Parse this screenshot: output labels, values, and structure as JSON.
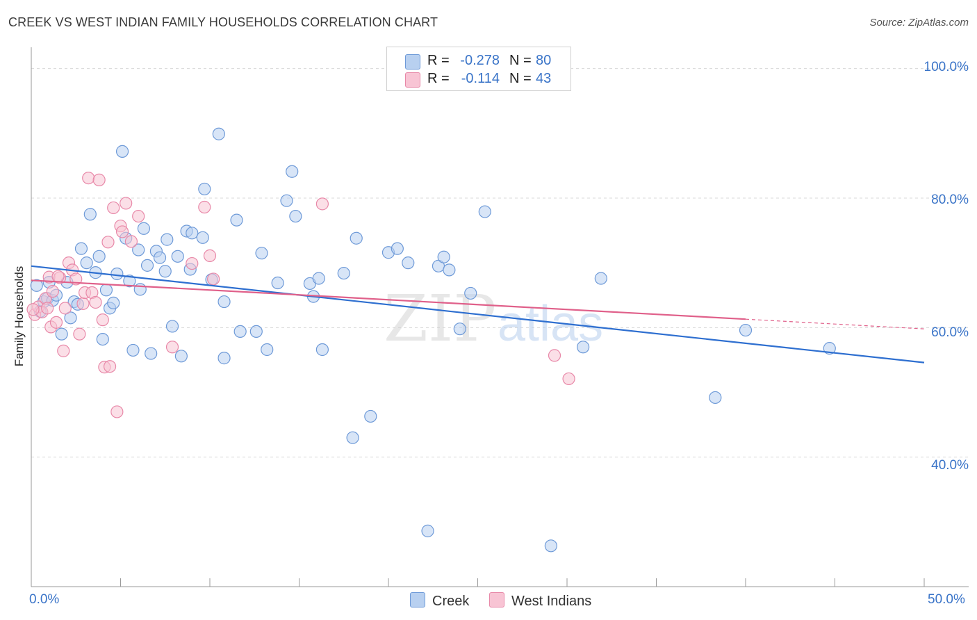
{
  "header": {
    "title": "CREEK VS WEST INDIAN FAMILY HOUSEHOLDS CORRELATION CHART",
    "source": "Source: ZipAtlas.com"
  },
  "legend": {
    "series": [
      {
        "r_label": "R =",
        "r_value": "-0.278",
        "n_label": "N =",
        "n_value": "80"
      },
      {
        "r_label": "R =",
        "r_value": "-0.114",
        "n_label": "N =",
        "n_value": "43"
      }
    ]
  },
  "bottom_legend": {
    "creek": "Creek",
    "west_indians": "West Indians"
  },
  "axis_labels": {
    "y": "Family Households",
    "y_ticks": [
      "100.0%",
      "80.0%",
      "60.0%",
      "40.0%"
    ],
    "x_min": "0.0%",
    "x_max": "50.0%"
  },
  "colors": {
    "creek_fill": "#b8d0f0",
    "creek_stroke": "#6e9ad8",
    "creek_line": "#2e6fd0",
    "wi_fill": "#f8c4d4",
    "wi_stroke": "#e888a8",
    "wi_line": "#e0608a",
    "tick_text": "#3a74c8",
    "grid": "#d8d8d8"
  },
  "watermark": {
    "zip": "ZIP",
    "atlas": "atlas"
  },
  "chart_data": {
    "type": "scatter",
    "title": "CREEK VS WEST INDIAN FAMILY HOUSEHOLDS CORRELATION CHART",
    "xlabel": "",
    "ylabel": "Family Households",
    "xlim": [
      0,
      50
    ],
    "ylim": [
      20,
      102
    ],
    "y_gridlines": [
      40,
      60,
      80,
      100
    ],
    "series": [
      {
        "name": "Creek",
        "r": -0.278,
        "n": 80,
        "trend": {
          "x0": 0,
          "y0": 69.5,
          "x1": 50,
          "y1": 54.6
        },
        "points": [
          [
            0.3,
            66.5
          ],
          [
            0.5,
            62.5
          ],
          [
            0.7,
            64.0
          ],
          [
            0.9,
            64.5
          ],
          [
            1.0,
            67.0
          ],
          [
            1.2,
            64.2
          ],
          [
            1.4,
            65.0
          ],
          [
            1.7,
            59.0
          ],
          [
            2.0,
            67.0
          ],
          [
            2.2,
            61.5
          ],
          [
            2.4,
            64.0
          ],
          [
            2.6,
            63.6
          ],
          [
            2.8,
            72.2
          ],
          [
            3.1,
            70.0
          ],
          [
            3.3,
            77.5
          ],
          [
            3.6,
            68.5
          ],
          [
            3.8,
            71.0
          ],
          [
            4.0,
            58.2
          ],
          [
            4.2,
            65.8
          ],
          [
            4.4,
            63.0
          ],
          [
            4.6,
            63.8
          ],
          [
            4.8,
            68.3
          ],
          [
            5.1,
            87.2
          ],
          [
            5.3,
            73.8
          ],
          [
            5.5,
            67.2
          ],
          [
            5.7,
            56.5
          ],
          [
            6.0,
            72.0
          ],
          [
            6.1,
            65.9
          ],
          [
            6.3,
            75.3
          ],
          [
            6.5,
            69.6
          ],
          [
            6.7,
            56.0
          ],
          [
            7.0,
            71.8
          ],
          [
            7.2,
            70.8
          ],
          [
            7.5,
            68.7
          ],
          [
            7.6,
            73.6
          ],
          [
            7.9,
            60.2
          ],
          [
            8.2,
            71.0
          ],
          [
            8.4,
            55.6
          ],
          [
            8.7,
            74.9
          ],
          [
            8.9,
            69.0
          ],
          [
            9.0,
            74.6
          ],
          [
            9.6,
            73.9
          ],
          [
            9.7,
            81.4
          ],
          [
            10.1,
            67.4
          ],
          [
            10.8,
            55.3
          ],
          [
            10.5,
            89.9
          ],
          [
            10.8,
            64.0
          ],
          [
            11.5,
            76.6
          ],
          [
            11.7,
            59.4
          ],
          [
            12.6,
            59.4
          ],
          [
            12.9,
            71.5
          ],
          [
            13.2,
            56.6
          ],
          [
            13.8,
            66.9
          ],
          [
            14.3,
            79.6
          ],
          [
            14.6,
            84.1
          ],
          [
            14.8,
            77.2
          ],
          [
            15.6,
            66.8
          ],
          [
            15.8,
            64.8
          ],
          [
            16.1,
            67.6
          ],
          [
            16.3,
            56.6
          ],
          [
            17.5,
            68.4
          ],
          [
            18.0,
            43.0
          ],
          [
            18.2,
            73.8
          ],
          [
            19.0,
            46.3
          ],
          [
            20.0,
            71.6
          ],
          [
            20.5,
            72.2
          ],
          [
            21.1,
            70.0
          ],
          [
            22.2,
            28.6
          ],
          [
            22.8,
            69.5
          ],
          [
            23.1,
            70.9
          ],
          [
            23.4,
            68.9
          ],
          [
            24.0,
            59.8
          ],
          [
            24.6,
            65.3
          ],
          [
            25.4,
            77.9
          ],
          [
            29.1,
            26.3
          ],
          [
            30.9,
            57.0
          ],
          [
            31.9,
            67.6
          ],
          [
            38.3,
            49.2
          ],
          [
            40.0,
            59.6
          ],
          [
            44.7,
            56.8
          ]
        ]
      },
      {
        "name": "West Indians",
        "r": -0.114,
        "n": 43,
        "trend": {
          "x0": 0,
          "y0": 67.3,
          "x1": 40,
          "y1": 61.3,
          "dashed_to": {
            "x": 50,
            "y": 59.8
          }
        },
        "points": [
          [
            0.2,
            62.0
          ],
          [
            0.4,
            63.2
          ],
          [
            0.6,
            62.4
          ],
          [
            0.8,
            64.5
          ],
          [
            0.9,
            63.0
          ],
          [
            1.0,
            67.8
          ],
          [
            1.1,
            60.1
          ],
          [
            1.2,
            65.6
          ],
          [
            1.4,
            60.8
          ],
          [
            1.6,
            67.7
          ],
          [
            1.8,
            56.4
          ],
          [
            1.9,
            63.0
          ],
          [
            2.1,
            70.0
          ],
          [
            2.3,
            68.9
          ],
          [
            2.5,
            67.5
          ],
          [
            2.7,
            59.0
          ],
          [
            2.9,
            63.7
          ],
          [
            3.0,
            65.4
          ],
          [
            3.2,
            83.1
          ],
          [
            3.4,
            65.4
          ],
          [
            3.6,
            63.9
          ],
          [
            3.8,
            82.8
          ],
          [
            4.0,
            61.2
          ],
          [
            4.1,
            53.9
          ],
          [
            4.3,
            73.2
          ],
          [
            4.4,
            54.0
          ],
          [
            4.6,
            78.5
          ],
          [
            4.8,
            47.0
          ],
          [
            5.0,
            75.7
          ],
          [
            5.1,
            74.8
          ],
          [
            5.3,
            79.2
          ],
          [
            5.6,
            73.3
          ],
          [
            6.0,
            77.2
          ],
          [
            7.9,
            57.0
          ],
          [
            9.0,
            69.9
          ],
          [
            9.7,
            78.6
          ],
          [
            10.0,
            71.1
          ],
          [
            10.2,
            67.5
          ],
          [
            16.3,
            79.1
          ],
          [
            29.3,
            55.7
          ],
          [
            30.1,
            52.1
          ],
          [
            0.1,
            62.8
          ],
          [
            1.5,
            67.9
          ]
        ]
      }
    ]
  }
}
